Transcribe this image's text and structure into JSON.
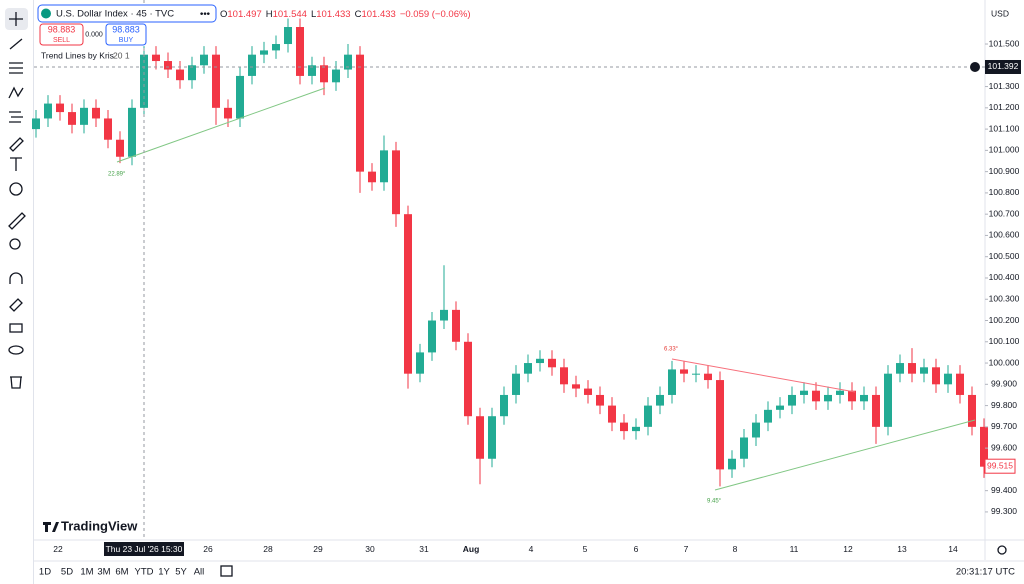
{
  "header": {
    "symbol": "U.S. Dollar Index · 45 · TVC",
    "ohlc": [
      {
        "k": "O",
        "v": "101.497"
      },
      {
        "k": "H",
        "v": "101.544"
      },
      {
        "k": "L",
        "v": "101.433"
      },
      {
        "k": "C",
        "v": "101.433"
      }
    ],
    "change": "−0.059 (−0.06%)",
    "sell_price": "98.883",
    "sell": "SELL",
    "spread": "0.000",
    "buy_price": "98.883",
    "buy": "BUY",
    "indicator": "Trend Lines by Kris",
    "indicator_params": "20 1",
    "currency": "USD"
  },
  "chart_data": {
    "type": "candlestick",
    "open": [
      101.1,
      101.15,
      101.22,
      101.18,
      101.12,
      101.2,
      101.15,
      101.05,
      100.97,
      101.2,
      101.45,
      101.42,
      101.38,
      101.33,
      101.4,
      101.45,
      101.2,
      101.15,
      101.35,
      101.45,
      101.47,
      101.5,
      101.58,
      101.35,
      101.4,
      101.32,
      101.38,
      101.45,
      100.9,
      100.85,
      101.0,
      100.7,
      99.95,
      100.05,
      100.2,
      100.25,
      100.1,
      99.75,
      99.55,
      99.75,
      99.85,
      99.95,
      100.0,
      100.02,
      99.98,
      99.9,
      99.88,
      99.85,
      99.8,
      99.72,
      99.68,
      99.7,
      99.8,
      99.85,
      99.97,
      99.95,
      99.95,
      99.92,
      99.5,
      99.55,
      99.65,
      99.72,
      99.78,
      99.8,
      99.85,
      99.87,
      99.82,
      99.85,
      99.87,
      99.82,
      99.85,
      99.7,
      99.95,
      100.0,
      99.95,
      99.98,
      99.9,
      99.95,
      99.85,
      99.7
    ],
    "high": [
      101.19,
      101.26,
      101.26,
      101.22,
      101.24,
      101.24,
      101.19,
      101.09,
      101.24,
      101.49,
      101.49,
      101.46,
      101.42,
      101.44,
      101.49,
      101.49,
      101.24,
      101.39,
      101.49,
      101.51,
      101.54,
      101.62,
      101.62,
      101.44,
      101.44,
      101.42,
      101.5,
      101.49,
      100.94,
      101.07,
      101.04,
      100.74,
      100.09,
      100.24,
      100.46,
      100.29,
      100.14,
      99.79,
      99.79,
      99.89,
      99.99,
      100.04,
      100.06,
      100.06,
      100.02,
      99.94,
      99.92,
      99.89,
      99.84,
      99.76,
      99.74,
      99.84,
      99.89,
      100.01,
      100.01,
      99.99,
      99.99,
      99.96,
      99.59,
      99.69,
      99.76,
      99.82,
      99.84,
      99.89,
      99.91,
      99.91,
      99.89,
      99.91,
      99.91,
      99.89,
      99.89,
      99.99,
      100.04,
      100.07,
      100.02,
      100.02,
      99.99,
      99.99,
      99.89,
      99.74
    ],
    "low": [
      101.06,
      101.11,
      101.14,
      101.08,
      101.08,
      101.11,
      101.01,
      100.94,
      100.93,
      101.16,
      101.38,
      101.34,
      101.29,
      101.29,
      101.36,
      101.12,
      101.11,
      101.11,
      101.31,
      101.41,
      101.43,
      101.46,
      101.31,
      101.31,
      101.26,
      101.28,
      101.34,
      100.8,
      100.81,
      100.81,
      100.64,
      99.88,
      99.91,
      100.01,
      100.16,
      100.06,
      99.71,
      99.43,
      99.51,
      99.71,
      99.81,
      99.91,
      99.96,
      99.94,
      99.86,
      99.84,
      99.81,
      99.76,
      99.68,
      99.64,
      99.64,
      99.66,
      99.76,
      99.81,
      99.91,
      99.91,
      99.88,
      99.42,
      99.46,
      99.51,
      99.61,
      99.68,
      99.74,
      99.76,
      99.81,
      99.78,
      99.78,
      99.81,
      99.78,
      99.78,
      99.62,
      99.66,
      99.91,
      99.91,
      99.91,
      99.86,
      99.86,
      99.81,
      99.66,
      99.46
    ],
    "close": [
      101.15,
      101.22,
      101.18,
      101.12,
      101.2,
      101.15,
      101.05,
      100.97,
      101.2,
      101.45,
      101.42,
      101.38,
      101.33,
      101.4,
      101.45,
      101.2,
      101.15,
      101.35,
      101.45,
      101.47,
      101.5,
      101.58,
      101.35,
      101.4,
      101.32,
      101.38,
      101.45,
      100.9,
      100.85,
      101.0,
      100.7,
      99.95,
      100.05,
      100.2,
      100.25,
      100.1,
      99.75,
      99.55,
      99.75,
      99.85,
      99.95,
      100.0,
      100.02,
      99.98,
      99.9,
      99.88,
      99.85,
      99.8,
      99.72,
      99.68,
      99.7,
      99.8,
      99.85,
      99.97,
      99.95,
      99.95,
      99.92,
      99.5,
      99.55,
      99.65,
      99.72,
      99.78,
      99.8,
      99.85,
      99.87,
      99.82,
      99.85,
      99.87,
      99.82,
      99.85,
      99.7,
      99.95,
      100.0,
      99.95,
      99.98,
      99.9,
      99.95,
      99.85,
      99.7,
      99.515
    ],
    "colors": {
      "up": "#22ab94",
      "down": "#f23645"
    },
    "ylim": [
      99.168,
      101.707
    ],
    "yticks": [
      {
        "value": 101.5,
        "label": "101.500"
      },
      {
        "value": 101.3,
        "label": "101.300"
      },
      {
        "value": 101.2,
        "label": "101.200"
      },
      {
        "value": 101.1,
        "label": "101.100"
      },
      {
        "value": 101.0,
        "label": "101.000"
      },
      {
        "value": 100.9,
        "label": "100.900"
      },
      {
        "value": 100.8,
        "label": "100.800"
      },
      {
        "value": 100.7,
        "label": "100.700"
      },
      {
        "value": 100.6,
        "label": "100.600"
      },
      {
        "value": 100.5,
        "label": "100.500"
      },
      {
        "value": 100.4,
        "label": "100.400"
      },
      {
        "value": 100.3,
        "label": "100.300"
      },
      {
        "value": 100.2,
        "label": "100.200"
      },
      {
        "value": 100.1,
        "label": "100.100"
      },
      {
        "value": 100.0,
        "label": "100.000"
      },
      {
        "value": 99.9,
        "label": "99.900"
      },
      {
        "value": 99.8,
        "label": "99.800"
      },
      {
        "value": 99.7,
        "label": "99.700"
      },
      {
        "value": 99.6,
        "label": "99.600"
      },
      {
        "value": 99.4,
        "label": "99.400"
      },
      {
        "value": 99.3,
        "label": "99.300"
      }
    ],
    "x_labels": [
      "22",
      "26",
      "28",
      "29",
      "30",
      "31",
      "Aug",
      "4",
      "5",
      "6",
      "7",
      "8",
      "11",
      "12",
      "13",
      "14"
    ],
    "crosshair": {
      "price": 101.392,
      "time": "Thu 23 Jul '26  15:30"
    },
    "last_price": 99.515,
    "annotations": [
      "22.89°",
      "6.33°",
      "9.45°"
    ]
  },
  "footer": {
    "ranges": [
      "1D",
      "5D",
      "1M",
      "3M",
      "6M",
      "YTD",
      "1Y",
      "5Y",
      "All"
    ],
    "clock": "20:31:17 UTC",
    "logo": "TradingView"
  }
}
